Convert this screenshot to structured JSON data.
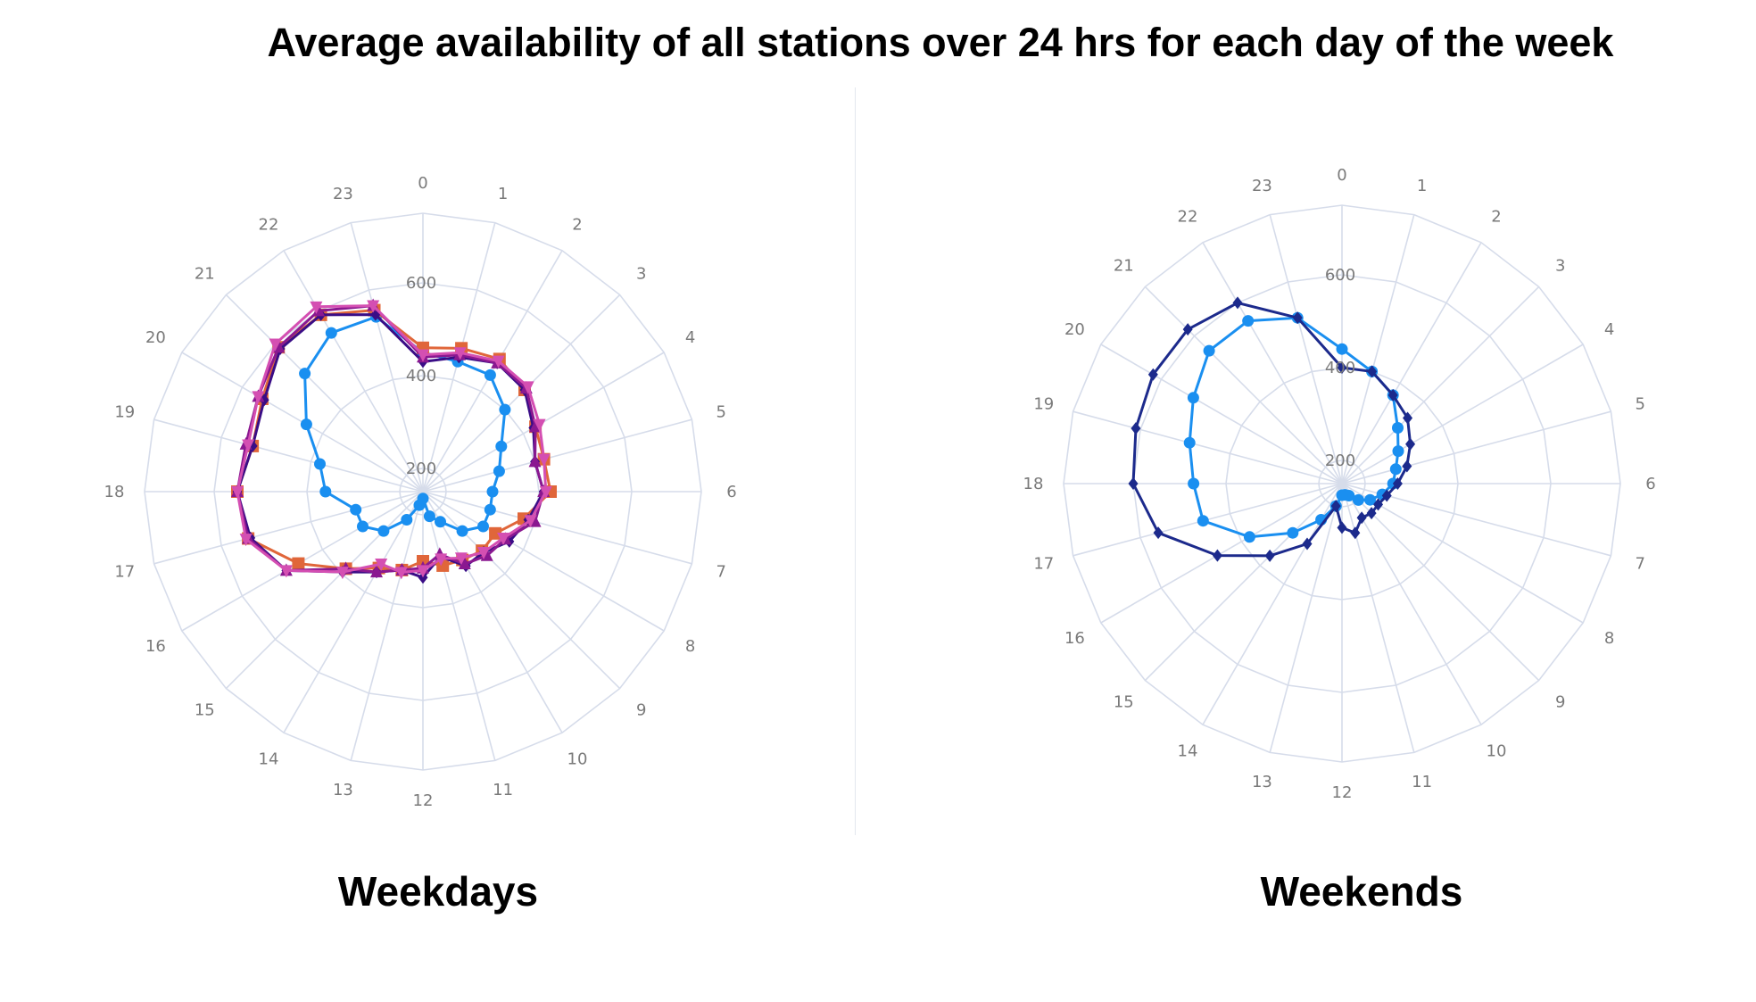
{
  "title": "Average availability of all stations over 24 hrs for each day of the week",
  "colors": {
    "grid": "#d6dcea",
    "text": "#7a7a7a"
  },
  "chart_data": [
    {
      "type": "polar-line",
      "label": "Weekdays",
      "angular_ticks": [
        "0",
        "1",
        "2",
        "3",
        "4",
        "5",
        "6",
        "7",
        "8",
        "9",
        "10",
        "11",
        "12",
        "13",
        "14",
        "15",
        "16",
        "17",
        "18",
        "19",
        "20",
        "21",
        "22",
        "23"
      ],
      "radial_ticks": [
        "200",
        "400",
        "600"
      ],
      "radial_range": [
        150,
        750
      ],
      "series": [
        {
          "color": "#1a8ff0",
          "marker": "circle",
          "values": [
            450,
            440,
            440,
            400,
            345,
            320,
            300,
            300,
            300,
            270,
            225,
            205,
            165,
            180,
            220,
            270,
            300,
            300,
            360,
            380,
            440,
            510,
            545,
            540
          ]
        },
        {
          "color": "#e0663a",
          "marker": "square",
          "values": [
            460,
            470,
            480,
            460,
            430,
            420,
            425,
            375,
            330,
            330,
            320,
            315,
            300,
            325,
            340,
            385,
            460,
            540,
            550,
            530,
            550,
            590,
            590,
            555
          ]
        },
        {
          "color": "#3a0d86",
          "marker": "diamond",
          "values": [
            430,
            450,
            470,
            460,
            425,
            400,
            410,
            385,
            365,
            335,
            335,
            295,
            335,
            325,
            350,
            395,
            490,
            535,
            550,
            530,
            545,
            585,
            590,
            545
          ]
        },
        {
          "color": "#8a1890",
          "marker": "triangle-up",
          "values": [
            440,
            455,
            470,
            465,
            430,
            400,
            410,
            400,
            355,
            345,
            330,
            290,
            315,
            325,
            350,
            385,
            490,
            540,
            550,
            545,
            560,
            590,
            600,
            565
          ]
        },
        {
          "color": "#d44fb2",
          "marker": "triangle-down",
          "values": [
            445,
            460,
            475,
            470,
            440,
            420,
            415,
            390,
            350,
            335,
            315,
            300,
            320,
            330,
            330,
            395,
            490,
            545,
            550,
            540,
            560,
            600,
            610,
            565
          ]
        }
      ]
    },
    {
      "type": "polar-line",
      "label": "Weekends",
      "angular_ticks": [
        "0",
        "1",
        "2",
        "3",
        "4",
        "5",
        "6",
        "7",
        "8",
        "9",
        "10",
        "11",
        "12",
        "13",
        "14",
        "15",
        "16",
        "17",
        "18",
        "19",
        "20",
        "21",
        "22",
        "23"
      ],
      "radial_ticks": [
        "200",
        "400",
        "600"
      ],
      "radial_range": [
        150,
        750
      ],
      "series": [
        {
          "color": "#1a8ff0",
          "marker": "circle",
          "values": [
            440,
            400,
            370,
            320,
            290,
            270,
            260,
            240,
            220,
            200,
            180,
            175,
            175,
            200,
            240,
            300,
            380,
            460,
            470,
            490,
            520,
            555,
            555,
            520
          ]
        },
        {
          "color": "#1c2a8c",
          "marker": "diamond",
          "values": [
            400,
            400,
            370,
            350,
            320,
            295,
            270,
            250,
            240,
            240,
            235,
            260,
            245,
            200,
            300,
            370,
            460,
            560,
            600,
            610,
            620,
            620,
            600,
            520
          ]
        }
      ]
    }
  ]
}
